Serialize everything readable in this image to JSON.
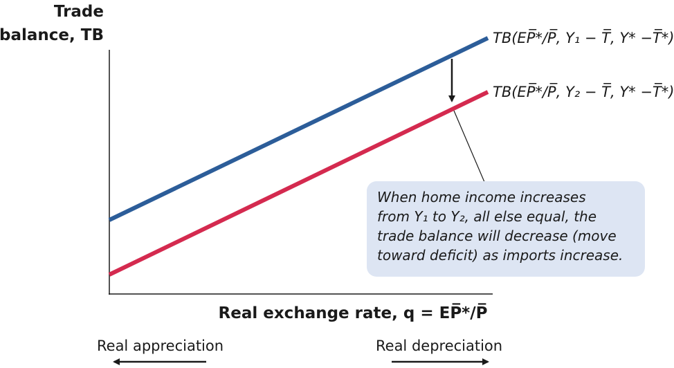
{
  "y_axis": {
    "title_lines": [
      "Trade",
      "balance, TB"
    ]
  },
  "x_axis": {
    "title": "Real exchange rate, q = EP̅*/P̅"
  },
  "curves": [
    {
      "label": "TB(EP̅*/P̅, Y₁ − T̅, Y* −T̅*)"
    },
    {
      "label": "TB(EP̅*/P̅, Y₂ − T̅, Y* −T̅*)"
    }
  ],
  "annotation": {
    "lines": [
      "When home income increases",
      "from Y₁ to Y₂, all else equal, the",
      "trade balance will decrease (move",
      "toward deficit) as imports increase."
    ]
  },
  "directions": {
    "left": "Real appreciation",
    "right": "Real depreciation"
  }
}
